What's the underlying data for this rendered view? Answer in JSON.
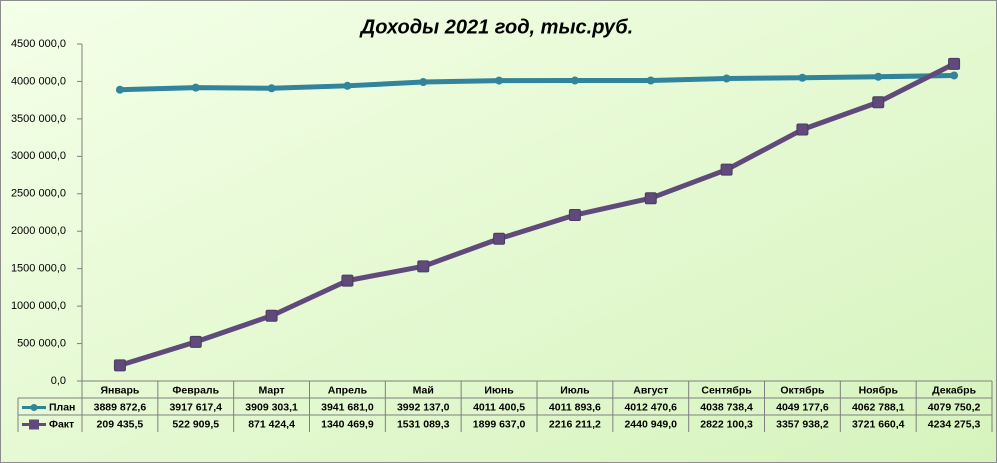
{
  "chart_data": {
    "type": "line",
    "title": "Доходы 2021 год, тыс.руб.",
    "categories": [
      "Январь",
      "Февраль",
      "Март",
      "Апрель",
      "Май",
      "Июнь",
      "Июль",
      "Август",
      "Сентябрь",
      "Октябрь",
      "Ноябрь",
      "Декабрь"
    ],
    "series": [
      {
        "name": "План",
        "color": "#31849b",
        "marker": "circle",
        "values": [
          3889872.6,
          3917617.4,
          3909303.1,
          3941681.0,
          3992137.0,
          4011400.5,
          4011893.6,
          4012470.6,
          4038738.4,
          4049177.6,
          4062788.1,
          4079750.2
        ],
        "value_labels": [
          "3889 872,6",
          "3917 617,4",
          "3909 303,1",
          "3941 681,0",
          "3992 137,0",
          "4011 400,5",
          "4011 893,6",
          "4012 470,6",
          "4038 738,4",
          "4049 177,6",
          "4062 788,1",
          "4079 750,2"
        ]
      },
      {
        "name": "Факт",
        "color": "#604a7b",
        "marker": "square",
        "values": [
          209435.5,
          522909.5,
          871424.4,
          1340469.9,
          1531089.3,
          1899637.0,
          2216211.2,
          2440949.0,
          2822100.3,
          3357938.2,
          3721660.4,
          4234275.3
        ],
        "value_labels": [
          "209 435,5",
          "522 909,5",
          "871 424,4",
          "1340 469,9",
          "1531 089,3",
          "1899 637,0",
          "2216 211,2",
          "2440 949,0",
          "2822 100,3",
          "3357 938,2",
          "3721 660,4",
          "4234 275,3"
        ]
      }
    ],
    "ylim": [
      0,
      4500000
    ],
    "yticks": [
      {
        "value": 0,
        "label": "0,0"
      },
      {
        "value": 500000,
        "label": "500 000,0"
      },
      {
        "value": 1000000,
        "label": "1000 000,0"
      },
      {
        "value": 1500000,
        "label": "1500 000,0"
      },
      {
        "value": 2000000,
        "label": "2000 000,0"
      },
      {
        "value": 2500000,
        "label": "2500 000,0"
      },
      {
        "value": 3000000,
        "label": "3000 000,0"
      },
      {
        "value": 3500000,
        "label": "3500 000,0"
      },
      {
        "value": 4000000,
        "label": "4000 000,0"
      },
      {
        "value": 4500000,
        "label": "4500 000,0"
      }
    ],
    "grid": false
  }
}
